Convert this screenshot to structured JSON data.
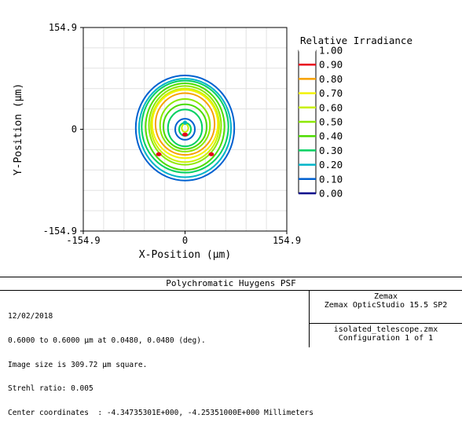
{
  "chart_data": {
    "type": "contour",
    "xlabel": "X-Position (µm)",
    "ylabel": "Y-Position (µm)",
    "xlim": [
      -154.9,
      154.9
    ],
    "ylim": [
      -154.9,
      154.9
    ],
    "x_ticks": [
      "-154.9",
      "0",
      "154.9"
    ],
    "y_ticks": [
      "154.9",
      "0",
      "-154.9"
    ],
    "grid": true,
    "legend": {
      "title": "Relative Irradiance",
      "placement": "right",
      "levels": [
        {
          "label": "1.00",
          "color": "#ffffff"
        },
        {
          "label": "0.90",
          "color": "#e8001c"
        },
        {
          "label": "0.80",
          "color": "#f7a000"
        },
        {
          "label": "0.70",
          "color": "#f2f200"
        },
        {
          "label": "0.60",
          "color": "#c8f000"
        },
        {
          "label": "0.50",
          "color": "#8ce800"
        },
        {
          "label": "0.40",
          "color": "#4cdc00"
        },
        {
          "label": "0.30",
          "color": "#00d060"
        },
        {
          "label": "0.20",
          "color": "#00b4c8"
        },
        {
          "label": "0.10",
          "color": "#0060d0"
        },
        {
          "label": "0.00",
          "color": "#00008c"
        }
      ]
    },
    "contours": [
      {
        "level": 0.1,
        "rx": 75,
        "ry": 80,
        "cx": 0,
        "cy": 2
      },
      {
        "level": 0.2,
        "rx": 70,
        "ry": 75,
        "cx": 0,
        "cy": 2
      },
      {
        "level": 0.3,
        "rx": 66,
        "ry": 70,
        "cx": 0,
        "cy": 4
      },
      {
        "level": 0.4,
        "rx": 60,
        "ry": 66,
        "cx": 0,
        "cy": 4
      },
      {
        "level": 0.5,
        "rx": 55,
        "ry": 60,
        "cx": 0,
        "cy": 6
      },
      {
        "level": 0.6,
        "rx": 52,
        "ry": 56,
        "cx": 0,
        "cy": 6
      },
      {
        "level": 0.7,
        "rx": 50,
        "ry": 52,
        "cx": 0,
        "cy": 8
      },
      {
        "level": 0.8,
        "rx": 45,
        "ry": 47,
        "cx": 0,
        "cy": 8
      },
      {
        "level": 0.5,
        "rx": 38,
        "ry": 40,
        "cx": 0,
        "cy": 6
      },
      {
        "level": 0.4,
        "rx": 33,
        "ry": 34,
        "cx": 0,
        "cy": 4
      },
      {
        "level": 0.3,
        "rx": 26,
        "ry": 28,
        "cx": 0,
        "cy": 2
      },
      {
        "level": 0.1,
        "rx": 15,
        "ry": 16,
        "cx": 0,
        "cy": 0
      },
      {
        "level": 0.3,
        "rx": 9,
        "ry": 10,
        "cx": 0,
        "cy": 0
      },
      {
        "level": 0.6,
        "rx": 5,
        "ry": 6,
        "cx": 0,
        "cy": 2
      },
      {
        "level": 0.2,
        "rx": 2,
        "ry": 2,
        "cx": 0,
        "cy": 10
      }
    ],
    "hot_spots": [
      {
        "level": 0.9,
        "x": -40,
        "y": -38
      },
      {
        "level": 0.9,
        "x": 40,
        "y": -38
      },
      {
        "level": 0.9,
        "x": 0,
        "y": -8
      }
    ]
  },
  "info": {
    "title": "Polychromatic Huygens PSF",
    "left_lines": [
      "12/02/2018",
      "0.6000 to 0.6000 µm at 0.0480, 0.0480 (deg).",
      "Image size is 309.72 µm square.",
      "Strehl ratio: 0.005",
      "Center coordinates  : -4.34735301E+000, -4.25351000E+000 Millimeters"
    ],
    "company": "Zemax",
    "product": "Zemax OpticStudio 15.5 SP2",
    "file": "isolated_telescope.zmx",
    "configuration": "Configuration 1 of 1"
  }
}
